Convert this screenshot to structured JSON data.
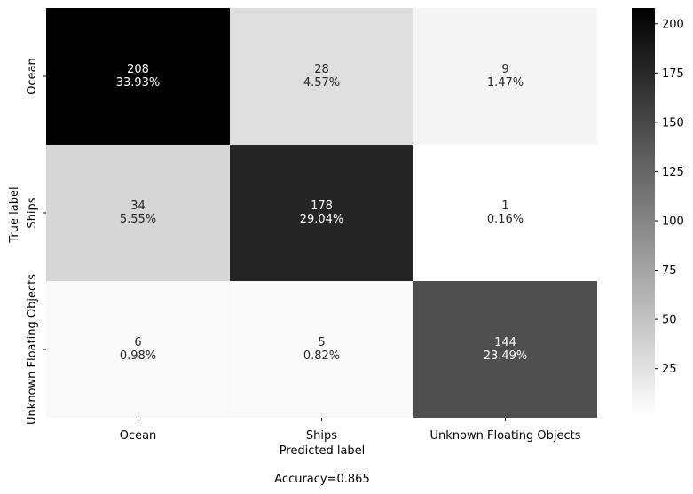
{
  "chart_data": {
    "type": "heatmap",
    "x_categories": [
      "Ocean",
      "Ships",
      "Unknown Floating Objects"
    ],
    "y_categories": [
      "Ocean",
      "Ships",
      "Unknown Floating Objects"
    ],
    "values": [
      [
        208,
        28,
        9
      ],
      [
        34,
        178,
        1
      ],
      [
        6,
        5,
        144
      ]
    ],
    "percent_labels": [
      [
        "33.93%",
        "4.57%",
        "1.47%"
      ],
      [
        "5.55%",
        "29.04%",
        "0.16%"
      ],
      [
        "0.98%",
        "0.82%",
        "23.49%"
      ]
    ],
    "xlabel": "Predicted label",
    "ylabel": "True label",
    "caption": "Accuracy=0.865",
    "colormap": "Greys",
    "colorbar": {
      "min": 1,
      "max": 208,
      "ticks": [
        25,
        50,
        75,
        100,
        125,
        150,
        175,
        200
      ]
    }
  }
}
